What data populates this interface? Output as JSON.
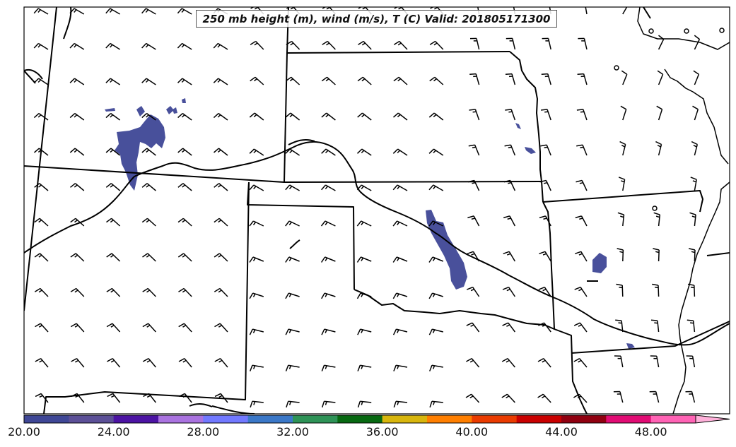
{
  "title": "250 mb height (m), wind (m/s), T (C) Valid: 201805171300",
  "colorbar": {
    "labels": [
      "20.00",
      "24.00",
      "28.00",
      "32.00",
      "36.00",
      "40.00",
      "44.00",
      "48.00"
    ],
    "colors": [
      "#3f4796",
      "#5c5097",
      "#4c13a3",
      "#aa73e0",
      "#7279ff",
      "#3b78c8",
      "#2e9357",
      "#076911",
      "#d8b60d",
      "#ff7f00",
      "#ea3b00",
      "#c90000",
      "#900010",
      "#e10c74",
      "#ff63b5"
    ],
    "extend_color": "#ffb1da"
  },
  "colors": {
    "boundary": "#000000",
    "temperature_fill": "#3f4796"
  }
}
